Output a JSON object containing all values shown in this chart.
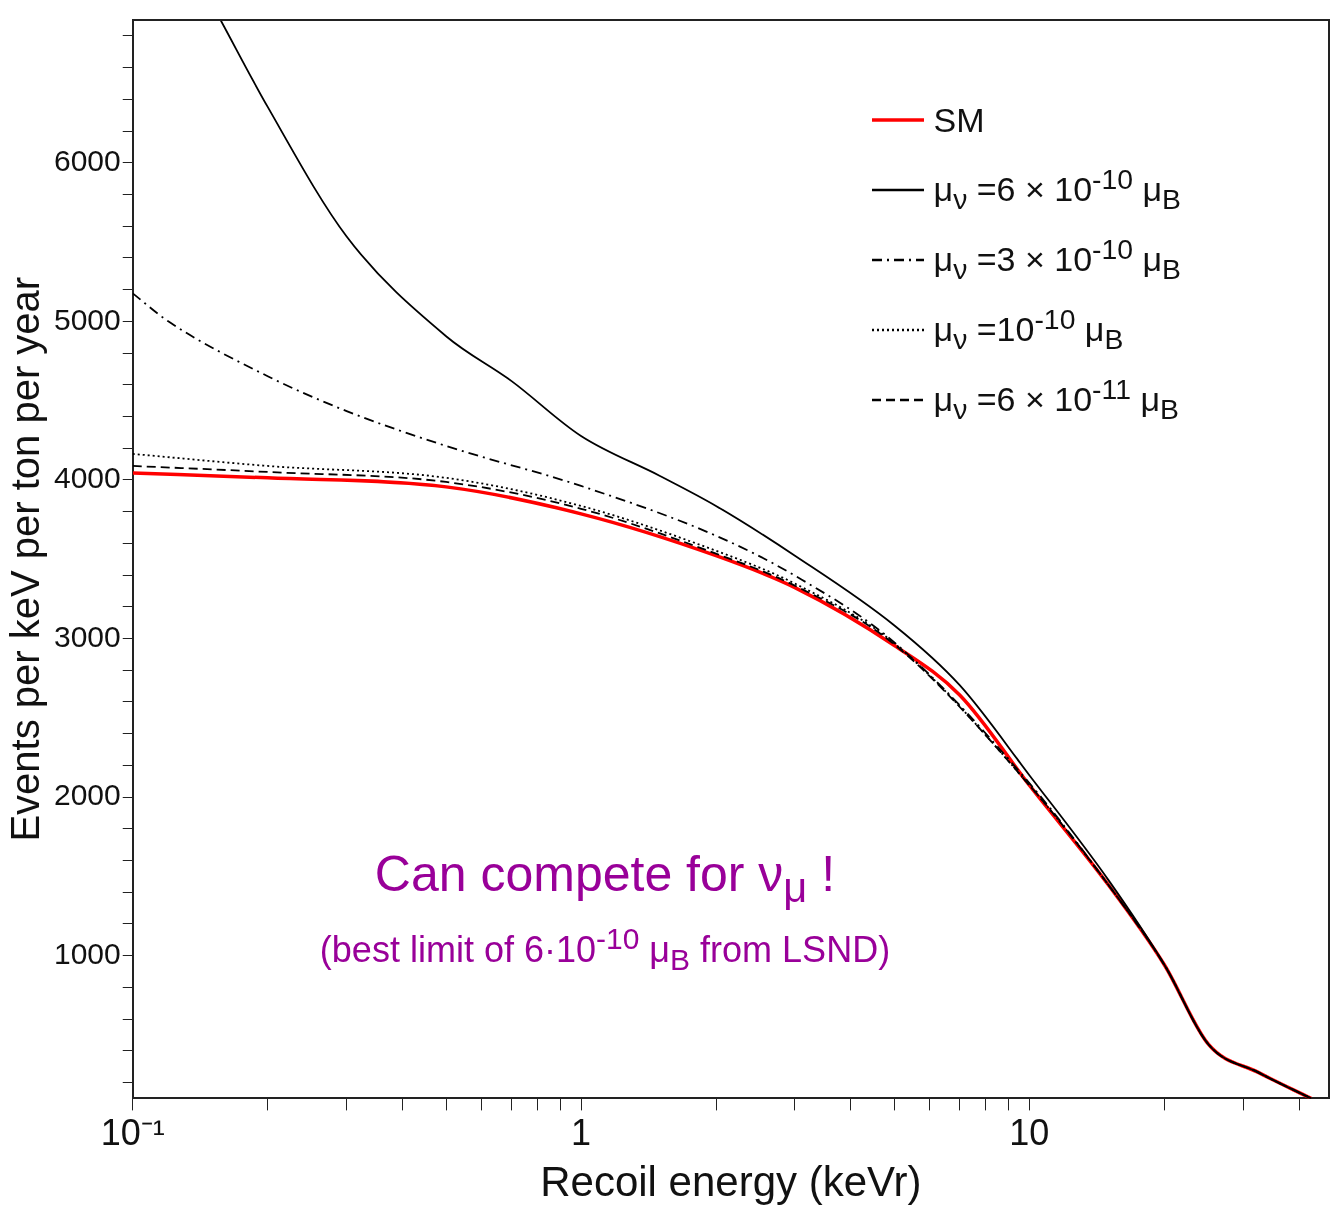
{
  "chart_data": {
    "type": "line",
    "xlabel": "Recoil energy (keVr)",
    "ylabel": "Events per keV per ton per year",
    "log": "x",
    "grid": false,
    "legend": "top right",
    "marker": "none",
    "xlim": [
      0.1,
      46.6
    ],
    "ylim": [
      100,
      6900
    ],
    "xticks": [
      {
        "value": 0.1,
        "label": "10⁻¹"
      },
      {
        "value": 0.2,
        "label": null
      },
      {
        "value": 0.3,
        "label": null
      },
      {
        "value": 0.4,
        "label": null
      },
      {
        "value": 0.5,
        "label": null
      },
      {
        "value": 0.6,
        "label": null
      },
      {
        "value": 0.7,
        "label": null
      },
      {
        "value": 0.8,
        "label": null
      },
      {
        "value": 0.9,
        "label": null
      },
      1,
      {
        "value": 2,
        "label": null
      },
      {
        "value": 3,
        "label": null
      },
      {
        "value": 4,
        "label": null
      },
      {
        "value": 5,
        "label": null
      },
      {
        "value": 6,
        "label": null
      },
      {
        "value": 7,
        "label": null
      },
      {
        "value": 8,
        "label": null
      },
      {
        "value": 9,
        "label": null
      },
      10,
      {
        "value": 20,
        "label": null
      },
      {
        "value": 30,
        "label": null
      },
      {
        "value": 40,
        "label": null
      }
    ],
    "yticks": [
      {
        "value": 200,
        "label": null
      },
      {
        "value": 400,
        "label": null
      },
      {
        "value": 600,
        "label": null
      },
      {
        "value": 800,
        "label": null
      },
      1000,
      {
        "value": 1200,
        "label": null
      },
      {
        "value": 1400,
        "label": null
      },
      {
        "value": 1600,
        "label": null
      },
      {
        "value": 1800,
        "label": null
      },
      2000,
      {
        "value": 2200,
        "label": null
      },
      {
        "value": 2400,
        "label": null
      },
      {
        "value": 2600,
        "label": null
      },
      {
        "value": 2800,
        "label": null
      },
      3000,
      {
        "value": 3200,
        "label": null
      },
      {
        "value": 3400,
        "label": null
      },
      {
        "value": 3600,
        "label": null
      },
      {
        "value": 3800,
        "label": null
      },
      4000,
      {
        "value": 4200,
        "label": null
      },
      {
        "value": 4400,
        "label": null
      },
      {
        "value": 4600,
        "label": null
      },
      {
        "value": 4800,
        "label": null
      },
      5000,
      {
        "value": 5200,
        "label": null
      },
      {
        "value": 5400,
        "label": null
      },
      {
        "value": 5600,
        "label": null
      },
      {
        "value": 5800,
        "label": null
      },
      6000,
      {
        "value": 6200,
        "label": null
      },
      {
        "value": 6400,
        "label": null
      },
      {
        "value": 6600,
        "label": null
      },
      {
        "value": 6800,
        "label": null
      }
    ],
    "series": [
      {
        "name": "SM",
        "color": "#ff0000",
        "line_style": "solid",
        "x": [
          0.1,
          0.2,
          0.5,
          1,
          2,
          3,
          5,
          7,
          10,
          15,
          20,
          25.1,
          32.4,
          42.5
        ],
        "values": [
          4044,
          4013,
          3956,
          3786,
          3522,
          3321,
          2956,
          2642,
          2075,
          1447,
          943,
          440,
          264,
          100
        ]
      },
      {
        "name": "μ$_{ν}$ =6 × 10$^{-10}$ μ$_{B}$",
        "color": "#000000",
        "line_style": "solid",
        "x": [
          0.157,
          0.2,
          0.3,
          0.5,
          0.7,
          1,
          1.5,
          2,
          3,
          5,
          7,
          10,
          15,
          20,
          25.1,
          32.4,
          42.5
        ],
        "values": [
          6900,
          6352,
          5535,
          4906,
          4623,
          4277,
          4025,
          3836,
          3522,
          3082,
          2704,
          2138,
          1478,
          943,
          440,
          264,
          100
        ]
      },
      {
        "name": "μ$_{ν}$ =3 × 10$^{-10}$ μ$_{B}$",
        "color": "#000000",
        "line_style": "dashdot",
        "x": [
          0.1,
          0.12,
          0.2,
          0.3,
          0.5,
          1,
          2,
          3,
          5,
          10,
          15,
          20,
          25.1,
          32.4,
          42.5
        ],
        "values": [
          5176,
          5000,
          4654,
          4434,
          4214,
          3962,
          3648,
          3396,
          2975,
          2088,
          1447,
          943,
          440,
          264,
          100
        ]
      },
      {
        "name": "μ$_{ν}$ =10$^{-10}$ μ$_{B}$",
        "color": "#000000",
        "line_style": "dotted",
        "x": [
          0.1,
          0.2,
          0.5,
          1,
          2,
          3,
          5,
          10,
          15,
          20,
          25.1,
          32.4,
          42.5
        ],
        "values": [
          4164,
          4088,
          4013,
          3836,
          3553,
          3346,
          2969,
          2075,
          1447,
          943,
          440,
          264,
          100
        ]
      },
      {
        "name": "μ$_{ν}$ =6 × 10$^{-11}$ μ$_{B}$",
        "color": "#000000",
        "line_style": "dashed",
        "x": [
          0.1,
          0.2,
          0.5,
          1,
          2,
          3,
          5,
          10,
          15,
          20,
          25.1,
          32.4,
          42.5
        ],
        "values": [
          4088,
          4050,
          3987,
          3818,
          3535,
          3333,
          2962,
          2075,
          1447,
          943,
          440,
          264,
          100
        ]
      }
    ],
    "annotations": [
      "Can compete for ν$_{μ}$ !",
      "(best limit of 6·10$^{-10}$ μ$_{B}$ from LSND)"
    ]
  }
}
